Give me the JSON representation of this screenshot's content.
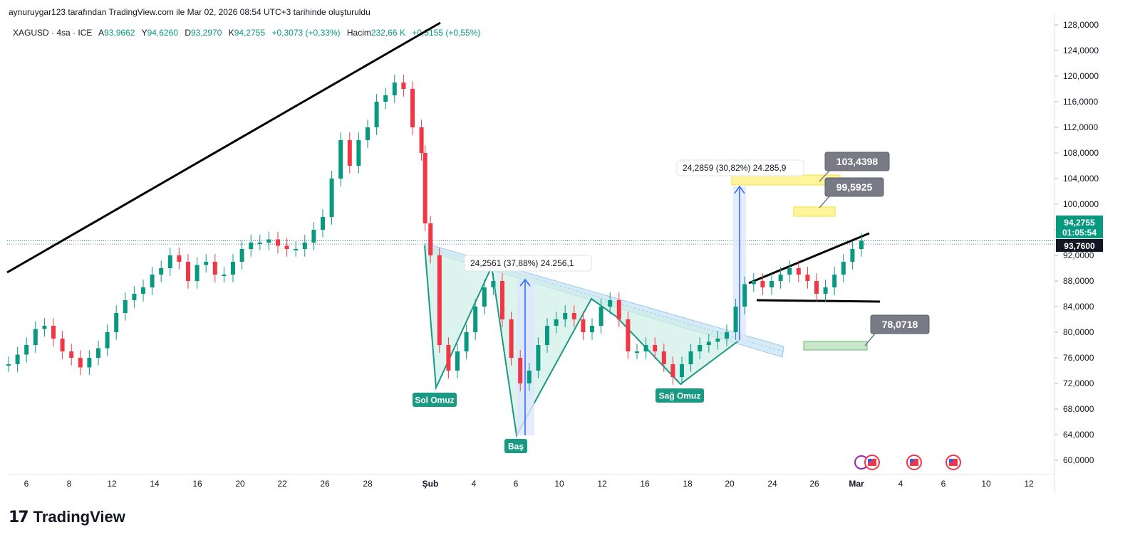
{
  "header": {
    "attribution": "aynuruygar123 tarafından TradingView.com ile Mar 02, 2026 08:54 UTC+3 tarihinde oluşturuldu"
  },
  "legend": {
    "symbol": "XAGUSD · 4sa · ICE",
    "open_label": "A",
    "open": "93,9662",
    "high_label": "Y",
    "high": "94,6260",
    "low_label": "D",
    "low": "93,2970",
    "close_label": "K",
    "close": "94,2755",
    "change": "+0,3073 (+0,33%)",
    "volume_label": "Hacim",
    "volume": "232,66 K",
    "extra": "+0,5155 (+0,55%)"
  },
  "price_badges": {
    "last": "94,2755",
    "countdown": "01:05:54",
    "prev": "93,7600"
  },
  "annotations": {
    "sol_omuz": "Sol Omuz",
    "bas": "Baş",
    "sag_omuz": "Sağ Omuz",
    "measure1": "24,2561 (37,88%) 24.256,1",
    "measure2": "24,2859 (30,82%) 24.285,9",
    "target1": "103,4398",
    "target2": "99,5925",
    "target3": "78,0718"
  },
  "logo": {
    "text": "TradingView",
    "mark": "17"
  },
  "colors": {
    "up": "#089981",
    "down": "#f23645",
    "pattern_fill": "#cfeee6",
    "pattern_line": "#1a9a82",
    "channel": "#9ec9ea",
    "measure": "#2962ff",
    "yellow": "#fff59d",
    "green_box": "#c8e6c9",
    "badge_gray": "#787b86"
  },
  "chart_data": {
    "type": "candlestick",
    "symbol": "XAGUSD",
    "interval": "4sa",
    "y_ticks": [
      "60,0000",
      "64,0000",
      "68,0000",
      "72,0000",
      "76,0000",
      "80,0000",
      "84,0000",
      "88,0000",
      "92,0000",
      "96,0000",
      "100,0000",
      "104,0000",
      "108,0000",
      "112,0000",
      "116,0000",
      "120,0000",
      "124,0000",
      "128,0000"
    ],
    "x_ticks": [
      "6",
      "8",
      "12",
      "14",
      "16",
      "20",
      "22",
      "26",
      "28",
      "Şub",
      "4",
      "6",
      "10",
      "12",
      "16",
      "18",
      "20",
      "24",
      "26",
      "Mar",
      "4",
      "6",
      "10",
      "12"
    ],
    "ylim": [
      58,
      128
    ],
    "close_path": [
      [
        0,
        75
      ],
      [
        0.5,
        76.5
      ],
      [
        1,
        78
      ],
      [
        1.5,
        80.5
      ],
      [
        2,
        81
      ],
      [
        2.5,
        79
      ],
      [
        3,
        77
      ],
      [
        3.5,
        76
      ],
      [
        4,
        74.5
      ],
      [
        4.5,
        76
      ],
      [
        5,
        77.5
      ],
      [
        5.5,
        80
      ],
      [
        6,
        83
      ],
      [
        6.5,
        85
      ],
      [
        7,
        86
      ],
      [
        7.5,
        87
      ],
      [
        8,
        89
      ],
      [
        8.5,
        90
      ],
      [
        9,
        92
      ],
      [
        9.5,
        91
      ],
      [
        10,
        88
      ],
      [
        10.5,
        90.5
      ],
      [
        11,
        91
      ],
      [
        11.5,
        89
      ],
      [
        12,
        89
      ],
      [
        12.5,
        91
      ],
      [
        13,
        93
      ],
      [
        13.5,
        94
      ],
      [
        14,
        94
      ],
      [
        14.5,
        94.5
      ],
      [
        15,
        93.5
      ],
      [
        15.5,
        93
      ],
      [
        16,
        93
      ],
      [
        16.5,
        94
      ],
      [
        17,
        96
      ],
      [
        17.5,
        98
      ],
      [
        18,
        104
      ],
      [
        18.5,
        110
      ],
      [
        19,
        106
      ],
      [
        19.5,
        110
      ],
      [
        20,
        112
      ],
      [
        20.5,
        116
      ],
      [
        21,
        117
      ],
      [
        21.5,
        119
      ],
      [
        22,
        118
      ],
      [
        22.5,
        112
      ],
      [
        23,
        108
      ],
      [
        23.2,
        97
      ],
      [
        23.5,
        92
      ],
      [
        24,
        78
      ],
      [
        24.5,
        74
      ],
      [
        25,
        77
      ],
      [
        25.5,
        80
      ],
      [
        26,
        84
      ],
      [
        26.5,
        87
      ],
      [
        27,
        88
      ],
      [
        27.5,
        82
      ],
      [
        28,
        76
      ],
      [
        28.5,
        72
      ],
      [
        29,
        74
      ],
      [
        29.5,
        78
      ],
      [
        30,
        81
      ],
      [
        30.5,
        82
      ],
      [
        31,
        83
      ],
      [
        31.5,
        82
      ],
      [
        32,
        80
      ],
      [
        32.5,
        81
      ],
      [
        33,
        84
      ],
      [
        33.5,
        85
      ],
      [
        34,
        82
      ],
      [
        34.5,
        77
      ],
      [
        35,
        77
      ],
      [
        35.5,
        78
      ],
      [
        36,
        77
      ],
      [
        36.5,
        75
      ],
      [
        37,
        73
      ],
      [
        37.5,
        75
      ],
      [
        38,
        77
      ],
      [
        38.5,
        78
      ],
      [
        39,
        78.5
      ],
      [
        39.5,
        79
      ],
      [
        40,
        80
      ],
      [
        40.5,
        84
      ],
      [
        41,
        87.5
      ],
      [
        41.5,
        88
      ],
      [
        42,
        87
      ],
      [
        42.5,
        88
      ],
      [
        43,
        89
      ],
      [
        43.5,
        90
      ],
      [
        44,
        89
      ],
      [
        44.5,
        88
      ],
      [
        45,
        86
      ],
      [
        45.5,
        87
      ],
      [
        46,
        89
      ],
      [
        46.5,
        91
      ],
      [
        47,
        93
      ],
      [
        47.5,
        94.3
      ]
    ],
    "key_levels": {
      "last": 94.2755,
      "prev_close": 93.76,
      "target_top": 103.4398,
      "target_mid": 99.5925,
      "target_low": 78.0718
    },
    "patterns": [
      "Sol Omuz",
      "Baş",
      "Sağ Omuz"
    ]
  }
}
